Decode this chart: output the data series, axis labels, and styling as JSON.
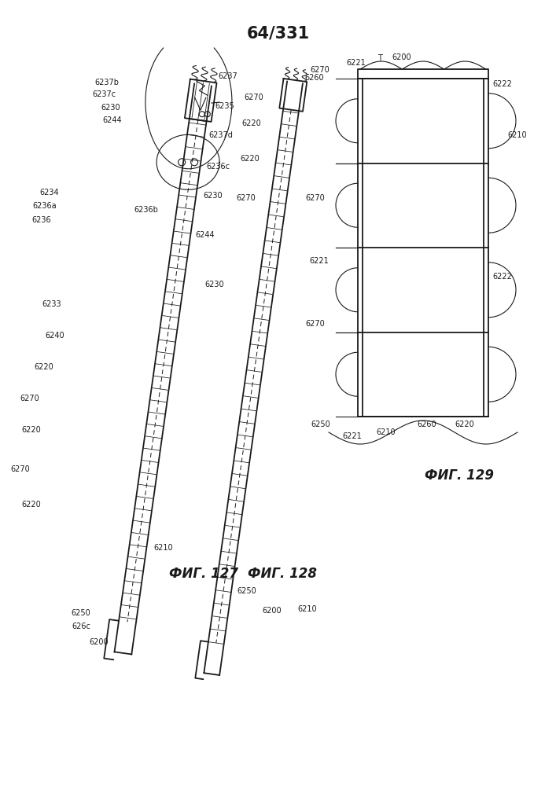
{
  "title": "64/331",
  "bg": "#ffffff",
  "black": "#1a1a1a",
  "fig127_label": "ФИГ. 127",
  "fig128_label": "ФИГ. 128",
  "fig129_label": "ФИГ. 129"
}
